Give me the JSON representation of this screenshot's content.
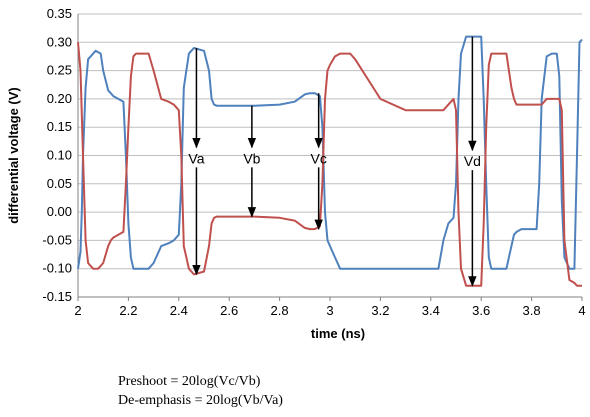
{
  "chart_data": {
    "type": "line",
    "xlabel": "time (ns)",
    "ylabel": "differential voltage (V)",
    "xlim": [
      2,
      4
    ],
    "ylim": [
      -0.15,
      0.35
    ],
    "x_ticks": [
      2,
      2.2,
      2.4,
      2.6,
      2.8,
      3,
      3.2,
      3.4,
      3.6,
      3.8,
      4
    ],
    "x_tick_labels": [
      "2",
      "2.2",
      "2.4",
      "2.6",
      "2.8",
      "3",
      "3.2",
      "3.4",
      "3.6",
      "3.8",
      "4"
    ],
    "y_ticks": [
      -0.15,
      -0.1,
      -0.05,
      0,
      0.05,
      0.1,
      0.15,
      0.2,
      0.25,
      0.3,
      0.35
    ],
    "y_tick_labels": [
      "-0.15",
      "-0.10",
      "-0.05",
      "0.00",
      "0.05",
      "0.10",
      "0.15",
      "0.20",
      "0.25",
      "0.30",
      "0.35"
    ],
    "grid": "horizontal",
    "series": [
      {
        "color": "#4f81bd",
        "x": [
          2.0,
          2.01,
          2.015,
          2.02,
          2.03,
          2.04,
          2.07,
          2.09,
          2.1,
          2.12,
          2.13,
          2.14,
          2.16,
          2.18,
          2.19,
          2.2,
          2.21,
          2.22,
          2.23,
          2.25,
          2.28,
          2.3,
          2.33,
          2.36,
          2.38,
          2.4,
          2.41,
          2.42,
          2.44,
          2.46,
          2.5,
          2.52,
          2.53,
          2.54,
          2.55,
          2.6,
          2.7,
          2.8,
          2.86,
          2.9,
          2.92,
          2.94,
          2.96,
          2.97,
          2.98,
          2.99,
          3.0,
          3.02,
          3.04,
          3.06,
          3.08,
          3.1,
          3.2,
          3.3,
          3.36,
          3.38,
          3.4,
          3.42,
          3.43,
          3.45,
          3.47,
          3.49,
          3.5,
          3.51,
          3.52,
          3.54,
          3.6,
          3.61,
          3.62,
          3.63,
          3.64,
          3.66,
          3.68,
          3.7,
          3.72,
          3.73,
          3.74,
          3.76,
          3.78,
          3.8,
          3.82,
          3.83,
          3.84,
          3.86,
          3.88,
          3.9,
          3.91,
          3.92,
          3.93,
          3.95,
          3.97,
          3.98,
          3.99,
          4.0
        ],
        "y": [
          -0.1,
          -0.07,
          0.0,
          0.1,
          0.22,
          0.27,
          0.285,
          0.28,
          0.25,
          0.215,
          0.21,
          0.205,
          0.2,
          0.195,
          0.1,
          -0.02,
          -0.08,
          -0.1,
          -0.1,
          -0.1,
          -0.1,
          -0.09,
          -0.06,
          -0.055,
          -0.05,
          -0.04,
          0.05,
          0.22,
          0.28,
          0.29,
          0.285,
          0.25,
          0.2,
          0.19,
          0.188,
          0.188,
          0.188,
          0.19,
          0.195,
          0.208,
          0.21,
          0.21,
          0.205,
          0.15,
          0.0,
          -0.05,
          -0.06,
          -0.08,
          -0.1,
          -0.1,
          -0.1,
          -0.1,
          -0.1,
          -0.1,
          -0.1,
          -0.1,
          -0.1,
          -0.1,
          -0.1,
          -0.05,
          -0.02,
          -0.01,
          0.05,
          0.2,
          0.28,
          0.31,
          0.31,
          0.2,
          0.05,
          -0.08,
          -0.1,
          -0.1,
          -0.1,
          -0.1,
          -0.06,
          -0.04,
          -0.035,
          -0.03,
          -0.03,
          -0.03,
          -0.03,
          0.05,
          0.2,
          0.275,
          0.28,
          0.28,
          0.24,
          0.02,
          -0.08,
          -0.1,
          -0.1,
          0.1,
          0.3,
          0.305
        ]
      },
      {
        "color": "#c0504d",
        "x": [
          2.0,
          2.01,
          2.02,
          2.03,
          2.04,
          2.06,
          2.08,
          2.1,
          2.12,
          2.13,
          2.14,
          2.16,
          2.18,
          2.19,
          2.2,
          2.21,
          2.22,
          2.23,
          2.25,
          2.28,
          2.3,
          2.33,
          2.36,
          2.38,
          2.4,
          2.41,
          2.42,
          2.44,
          2.46,
          2.5,
          2.52,
          2.53,
          2.54,
          2.55,
          2.6,
          2.7,
          2.8,
          2.86,
          2.9,
          2.92,
          2.94,
          2.96,
          2.97,
          2.98,
          2.99,
          3.0,
          3.02,
          3.04,
          3.06,
          3.08,
          3.1,
          3.2,
          3.3,
          3.36,
          3.38,
          3.4,
          3.42,
          3.43,
          3.45,
          3.47,
          3.49,
          3.5,
          3.51,
          3.52,
          3.54,
          3.6,
          3.61,
          3.62,
          3.63,
          3.64,
          3.66,
          3.68,
          3.7,
          3.72,
          3.73,
          3.74,
          3.76,
          3.78,
          3.8,
          3.82,
          3.83,
          3.84,
          3.86,
          3.88,
          3.9,
          3.91,
          3.92,
          3.93,
          3.95,
          3.97,
          3.98,
          3.99,
          4.0
        ],
        "y": [
          0.3,
          0.25,
          0.1,
          -0.05,
          -0.09,
          -0.1,
          -0.1,
          -0.09,
          -0.06,
          -0.05,
          -0.045,
          -0.04,
          -0.035,
          0.05,
          0.15,
          0.24,
          0.275,
          0.28,
          0.28,
          0.28,
          0.25,
          0.2,
          0.195,
          0.19,
          0.18,
          0.1,
          -0.06,
          -0.1,
          -0.11,
          -0.105,
          -0.06,
          -0.02,
          -0.01,
          -0.008,
          -0.008,
          -0.008,
          -0.01,
          -0.015,
          -0.028,
          -0.03,
          -0.03,
          -0.025,
          0.05,
          0.2,
          0.25,
          0.26,
          0.275,
          0.28,
          0.28,
          0.28,
          0.27,
          0.2,
          0.18,
          0.18,
          0.18,
          0.18,
          0.18,
          0.18,
          0.18,
          0.19,
          0.2,
          0.18,
          0.0,
          -0.1,
          -0.13,
          -0.13,
          -0.02,
          0.15,
          0.26,
          0.28,
          0.28,
          0.28,
          0.28,
          0.22,
          0.2,
          0.19,
          0.19,
          0.19,
          0.19,
          0.19,
          0.19,
          0.19,
          0.2,
          0.2,
          0.2,
          0.2,
          0.18,
          -0.05,
          -0.12,
          -0.125,
          -0.13,
          -0.13,
          -0.13
        ]
      }
    ],
    "annotations": [
      {
        "label": "Va",
        "x": 2.47,
        "y_top": 0.29,
        "y_bottom": -0.11,
        "label_y": 0.095
      },
      {
        "label": "Vb",
        "x": 2.69,
        "y_top": 0.188,
        "y_bottom": -0.008,
        "label_y": 0.095
      },
      {
        "label": "Vc",
        "x": 2.955,
        "y_top": 0.21,
        "y_bottom": -0.03,
        "label_y": 0.095
      },
      {
        "label": "Vd",
        "x": 3.565,
        "y_top": 0.31,
        "y_bottom": -0.13,
        "label_y": 0.09
      }
    ]
  },
  "notes": {
    "preshoot": "Preshoot = 20log(Vc/Vb)",
    "deemphasis": "De-emphasis = 20log(Vb/Va)"
  }
}
